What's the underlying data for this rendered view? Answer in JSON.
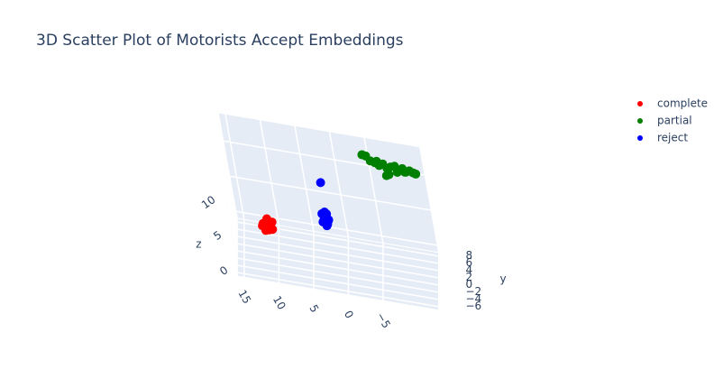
{
  "chart_data": {
    "type": "scatter3d",
    "title": "3D Scatter Plot of Motorists Accept Embeddings",
    "y_label": "y",
    "z_label": "z",
    "xlim": [
      -13,
      16
    ],
    "ylim": [
      -7,
      9
    ],
    "zlim": [
      -1,
      14
    ],
    "xticks": [
      {
        "value": -5,
        "label": "−5"
      },
      0,
      5,
      10,
      15
    ],
    "yticks": [
      {
        "value": -6,
        "label": "−6"
      },
      {
        "value": -4,
        "label": "−4"
      },
      {
        "value": -2,
        "label": "−2"
      },
      0,
      2,
      4,
      6,
      8
    ],
    "zticks": [
      0,
      5,
      10
    ],
    "grid": true,
    "legend": "top-right",
    "series": [
      {
        "name": "complete",
        "color": "#ff0000",
        "x": [
          10.2,
          10.8,
          11.1,
          9.9,
          10.5,
          10.9,
          10.1,
          10.6,
          11.3,
          9.8,
          10.4,
          10.7
        ],
        "y": [
          -3,
          -2.5,
          -3.5,
          -3,
          -2.8,
          -3.2,
          -2.6,
          -3.4,
          -3,
          -2.9,
          -3.1,
          -2.7
        ],
        "z": [
          5.2,
          4.8,
          5.5,
          4.6,
          5.9,
          4.4,
          5.3,
          5.0,
          4.9,
          5.6,
          4.5,
          5.1
        ]
      },
      {
        "name": "partial",
        "color": "#008000",
        "x": [
          -4.5,
          -5,
          -5.6,
          -6.2,
          -6.8,
          -7.3,
          -7.9,
          -8.4,
          -9,
          -9.6,
          -10.1,
          -10.6,
          -11.1,
          -11.6,
          -12,
          -8,
          -7.6,
          -9.3,
          -10.4,
          -6.5
        ],
        "y": [
          6,
          6.2,
          5.8,
          6.1,
          5.9,
          6.3,
          5.7,
          6,
          6.2,
          5.8,
          6.1,
          5.9,
          6,
          6.2,
          5.8,
          5.9,
          6.1,
          6,
          6.2,
          5.8
        ],
        "z": [
          13,
          12.8,
          12.4,
          12.1,
          11.9,
          12.0,
          11.8,
          11.9,
          12.0,
          11.7,
          11.9,
          11.6,
          11.8,
          11.5,
          11.6,
          10.8,
          10.5,
          11.3,
          11.4,
          12.5
        ]
      },
      {
        "name": "reject",
        "color": "#0000ff",
        "x": [
          2.1,
          1.7,
          2.4,
          1.9,
          2.2,
          1.6,
          2.5,
          2.0,
          1.8,
          2.3,
          2.0,
          2
        ],
        "y": [
          0,
          0.3,
          -0.3,
          0.2,
          -0.2,
          0,
          0.1,
          -0.1,
          0.4,
          -0.4,
          0,
          2
        ],
        "z": [
          6.2,
          5.5,
          6.7,
          5.0,
          6.0,
          5.8,
          5.3,
          6.9,
          6.4,
          5.6,
          4.9,
          10
        ]
      }
    ]
  }
}
